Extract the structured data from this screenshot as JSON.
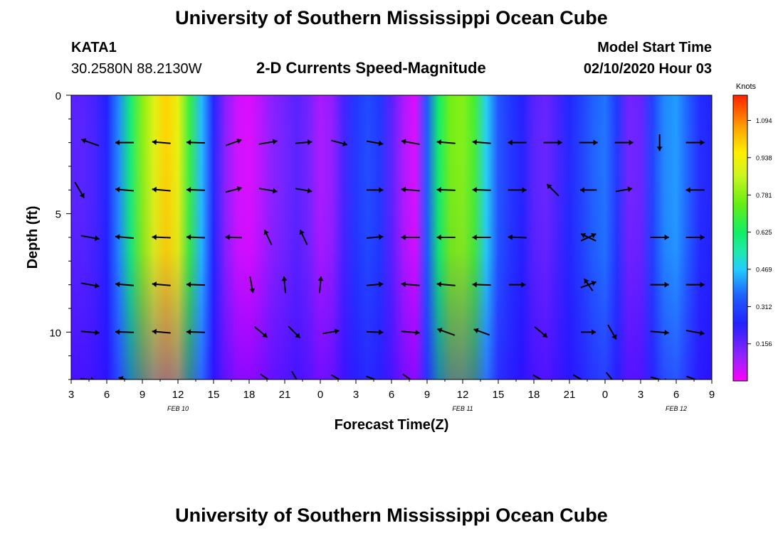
{
  "header": {
    "title": "University of Southern Mississippi Ocean Cube",
    "station": "KATA1",
    "coords": "30.2580N 88.2130W",
    "plot_title": "2-D Currents Speed-Magnitude",
    "model_label": "Model Start Time",
    "model_time": "02/10/2020 Hour 03"
  },
  "footer": {
    "title": "University of Southern Mississippi Ocean Cube"
  },
  "chart_data": {
    "type": "heatmap",
    "title": "2-D Currents Speed-Magnitude",
    "xlabel": "Forecast Time(Z)",
    "ylabel": "Depth (ft)",
    "x_tick_labels": [
      "3",
      "6",
      "9",
      "12",
      "15",
      "18",
      "21",
      "0",
      "3",
      "6",
      "9",
      "12",
      "15",
      "18",
      "21",
      "0",
      "3",
      "6",
      "9"
    ],
    "x_hours": [
      3,
      6,
      9,
      12,
      15,
      18,
      21,
      24,
      27,
      30,
      33,
      36,
      39,
      42,
      45,
      48,
      51,
      54,
      57
    ],
    "x_range_hours": [
      3,
      57
    ],
    "date_labels": [
      {
        "text": "FEB 10",
        "hour": 12
      },
      {
        "text": "FEB 11",
        "hour": 36
      },
      {
        "text": "FEB 12",
        "hour": 54
      }
    ],
    "y_ticks": [
      0,
      5,
      10
    ],
    "y_range_ft": [
      0,
      12
    ],
    "y_inverted": true,
    "colorbar": {
      "unit": "Knots",
      "range": [
        0,
        1.2
      ],
      "tick_values": [
        0.156,
        0.312,
        0.469,
        0.625,
        0.781,
        0.938,
        1.094
      ]
    },
    "speed_profile_knots": [
      [
        3,
        0.18
      ],
      [
        4,
        0.18
      ],
      [
        5,
        0.2
      ],
      [
        6,
        0.24
      ],
      [
        7,
        0.4
      ],
      [
        8,
        0.6
      ],
      [
        9,
        0.78
      ],
      [
        10,
        0.9
      ],
      [
        11,
        1.0
      ],
      [
        12,
        0.92
      ],
      [
        13,
        0.68
      ],
      [
        14,
        0.45
      ],
      [
        15,
        0.25
      ],
      [
        16,
        0.13
      ],
      [
        17,
        0.07
      ],
      [
        18,
        0.05
      ],
      [
        19,
        0.09
      ],
      [
        20,
        0.13
      ],
      [
        21,
        0.15
      ],
      [
        22,
        0.18
      ],
      [
        23,
        0.15
      ],
      [
        24,
        0.1
      ],
      [
        25,
        0.12
      ],
      [
        26,
        0.2
      ],
      [
        27,
        0.28
      ],
      [
        28,
        0.32
      ],
      [
        29,
        0.28
      ],
      [
        30,
        0.18
      ],
      [
        31,
        0.1
      ],
      [
        32,
        0.05
      ],
      [
        33,
        0.35
      ],
      [
        34,
        0.62
      ],
      [
        35,
        0.76
      ],
      [
        36,
        0.78
      ],
      [
        37,
        0.7
      ],
      [
        38,
        0.48
      ],
      [
        39,
        0.34
      ],
      [
        40,
        0.28
      ],
      [
        41,
        0.24
      ],
      [
        42,
        0.18
      ],
      [
        43,
        0.16
      ],
      [
        44,
        0.2
      ],
      [
        45,
        0.25
      ],
      [
        46,
        0.3
      ],
      [
        47,
        0.36
      ],
      [
        48,
        0.38
      ],
      [
        49,
        0.28
      ],
      [
        50,
        0.15
      ],
      [
        51,
        0.16
      ],
      [
        52,
        0.3
      ],
      [
        53,
        0.4
      ],
      [
        54,
        0.42
      ],
      [
        55,
        0.36
      ],
      [
        56,
        0.26
      ],
      [
        57,
        0.24
      ]
    ],
    "vectors": [
      {
        "hour": 4.6,
        "depth": 2,
        "angle": 160,
        "len": 1.0
      },
      {
        "hour": 7.5,
        "depth": 2,
        "angle": 180,
        "len": 1.0
      },
      {
        "hour": 10.6,
        "depth": 2,
        "angle": 175,
        "len": 1.0
      },
      {
        "hour": 13.5,
        "depth": 2,
        "angle": 178,
        "len": 1.0
      },
      {
        "hour": 16.7,
        "depth": 2,
        "angle": 20,
        "len": 0.9
      },
      {
        "hour": 19.6,
        "depth": 2,
        "angle": 10,
        "len": 1.0
      },
      {
        "hour": 22.6,
        "depth": 2,
        "angle": 5,
        "len": 0.9
      },
      {
        "hour": 25.6,
        "depth": 2,
        "angle": -15,
        "len": 0.9
      },
      {
        "hour": 28.6,
        "depth": 2,
        "angle": -10,
        "len": 0.9
      },
      {
        "hour": 31.6,
        "depth": 2,
        "angle": 170,
        "len": 1.0
      },
      {
        "hour": 34.6,
        "depth": 2,
        "angle": 175,
        "len": 1.0
      },
      {
        "hour": 37.6,
        "depth": 2,
        "angle": 175,
        "len": 1.0
      },
      {
        "hour": 40.6,
        "depth": 2,
        "angle": 180,
        "len": 1.0
      },
      {
        "hour": 43.6,
        "depth": 2,
        "angle": 0,
        "len": 1.0
      },
      {
        "hour": 46.6,
        "depth": 2,
        "angle": 0,
        "len": 1.0
      },
      {
        "hour": 49.6,
        "depth": 2,
        "angle": 0,
        "len": 1.0
      },
      {
        "hour": 52.6,
        "depth": 2,
        "angle": -90,
        "len": 0.9
      },
      {
        "hour": 55.6,
        "depth": 2,
        "angle": 0,
        "len": 1.0
      },
      {
        "hour": 3.7,
        "depth": 4,
        "angle": -60,
        "len": 1.0
      },
      {
        "hour": 7.5,
        "depth": 4,
        "angle": 175,
        "len": 1.0
      },
      {
        "hour": 10.6,
        "depth": 4,
        "angle": 175,
        "len": 1.0
      },
      {
        "hour": 13.5,
        "depth": 4,
        "angle": 178,
        "len": 1.0
      },
      {
        "hour": 16.7,
        "depth": 4,
        "angle": 15,
        "len": 0.9
      },
      {
        "hour": 19.6,
        "depth": 4,
        "angle": -10,
        "len": 1.0
      },
      {
        "hour": 22.6,
        "depth": 4,
        "angle": -10,
        "len": 0.9
      },
      {
        "hour": 28.6,
        "depth": 4,
        "angle": 0,
        "len": 0.9
      },
      {
        "hour": 31.6,
        "depth": 4,
        "angle": 175,
        "len": 1.0
      },
      {
        "hour": 34.6,
        "depth": 4,
        "angle": 178,
        "len": 1.0
      },
      {
        "hour": 37.6,
        "depth": 4,
        "angle": 178,
        "len": 1.0
      },
      {
        "hour": 40.6,
        "depth": 4,
        "angle": 0,
        "len": 1.0
      },
      {
        "hour": 43.6,
        "depth": 4,
        "angle": 135,
        "len": 0.9
      },
      {
        "hour": 46.6,
        "depth": 4,
        "angle": 180,
        "len": 0.9
      },
      {
        "hour": 49.6,
        "depth": 4,
        "angle": 10,
        "len": 0.9
      },
      {
        "hour": 55.6,
        "depth": 4,
        "angle": 180,
        "len": 1.0
      },
      {
        "hour": 4.6,
        "depth": 6,
        "angle": -10,
        "len": 1.0
      },
      {
        "hour": 7.5,
        "depth": 6,
        "angle": 175,
        "len": 1.0
      },
      {
        "hour": 10.6,
        "depth": 6,
        "angle": 178,
        "len": 1.0
      },
      {
        "hour": 13.5,
        "depth": 6,
        "angle": 178,
        "len": 1.0
      },
      {
        "hour": 16.7,
        "depth": 6,
        "angle": 178,
        "len": 0.9
      },
      {
        "hour": 19.6,
        "depth": 6,
        "angle": 115,
        "len": 0.9
      },
      {
        "hour": 22.6,
        "depth": 6,
        "angle": 115,
        "len": 0.9
      },
      {
        "hour": 28.6,
        "depth": 6,
        "angle": 5,
        "len": 0.9
      },
      {
        "hour": 31.6,
        "depth": 6,
        "angle": 180,
        "len": 1.0
      },
      {
        "hour": 34.6,
        "depth": 6,
        "angle": 180,
        "len": 1.0
      },
      {
        "hour": 37.6,
        "depth": 6,
        "angle": 180,
        "len": 1.0
      },
      {
        "hour": 40.6,
        "depth": 6,
        "angle": 178,
        "len": 1.0
      },
      {
        "hour": 46.6,
        "depth": 6,
        "angle": 25,
        "len": 0.9
      },
      {
        "hour": 46.6,
        "depth": 6,
        "angle": 155,
        "len": 0.9
      },
      {
        "hour": 52.6,
        "depth": 6,
        "angle": 0,
        "len": 1.0
      },
      {
        "hour": 55.6,
        "depth": 6,
        "angle": 0,
        "len": 1.0
      },
      {
        "hour": 4.6,
        "depth": 8,
        "angle": -10,
        "len": 1.0
      },
      {
        "hour": 7.5,
        "depth": 8,
        "angle": 175,
        "len": 1.0
      },
      {
        "hour": 10.6,
        "depth": 8,
        "angle": 175,
        "len": 1.0
      },
      {
        "hour": 13.5,
        "depth": 8,
        "angle": 178,
        "len": 1.0
      },
      {
        "hour": 18.2,
        "depth": 8,
        "angle": -80,
        "len": 0.9
      },
      {
        "hour": 21.0,
        "depth": 8,
        "angle": 95,
        "len": 0.9
      },
      {
        "hour": 24.0,
        "depth": 8,
        "angle": 85,
        "len": 0.9
      },
      {
        "hour": 28.6,
        "depth": 8,
        "angle": 5,
        "len": 0.9
      },
      {
        "hour": 31.6,
        "depth": 8,
        "angle": 175,
        "len": 1.0
      },
      {
        "hour": 34.6,
        "depth": 8,
        "angle": 175,
        "len": 1.0
      },
      {
        "hour": 37.6,
        "depth": 8,
        "angle": 178,
        "len": 1.0
      },
      {
        "hour": 40.6,
        "depth": 8,
        "angle": 0,
        "len": 0.9
      },
      {
        "hour": 46.6,
        "depth": 8,
        "angle": 20,
        "len": 0.9
      },
      {
        "hour": 46.6,
        "depth": 8,
        "angle": 125,
        "len": 0.8
      },
      {
        "hour": 52.6,
        "depth": 8,
        "angle": 0,
        "len": 1.0
      },
      {
        "hour": 55.6,
        "depth": 8,
        "angle": 0,
        "len": 1.0
      },
      {
        "hour": 4.6,
        "depth": 10,
        "angle": -5,
        "len": 1.0
      },
      {
        "hour": 7.5,
        "depth": 10,
        "angle": 178,
        "len": 1.0
      },
      {
        "hour": 10.6,
        "depth": 10,
        "angle": 175,
        "len": 1.0
      },
      {
        "hour": 13.5,
        "depth": 10,
        "angle": 178,
        "len": 1.0
      },
      {
        "hour": 19.0,
        "depth": 10,
        "angle": -40,
        "len": 0.9
      },
      {
        "hour": 21.8,
        "depth": 10,
        "angle": -45,
        "len": 0.9
      },
      {
        "hour": 24.9,
        "depth": 10,
        "angle": 10,
        "len": 0.9
      },
      {
        "hour": 28.6,
        "depth": 10,
        "angle": -2,
        "len": 0.9
      },
      {
        "hour": 31.6,
        "depth": 10,
        "angle": -5,
        "len": 1.0
      },
      {
        "hour": 34.6,
        "depth": 10,
        "angle": 160,
        "len": 1.0
      },
      {
        "hour": 37.6,
        "depth": 10,
        "angle": 160,
        "len": 0.9
      },
      {
        "hour": 42.6,
        "depth": 10,
        "angle": -40,
        "len": 0.9
      },
      {
        "hour": 46.6,
        "depth": 10,
        "angle": 0,
        "len": 0.8
      },
      {
        "hour": 48.6,
        "depth": 10,
        "angle": -60,
        "len": 0.9
      },
      {
        "hour": 52.6,
        "depth": 10,
        "angle": -5,
        "len": 1.0
      },
      {
        "hour": 55.6,
        "depth": 10,
        "angle": -10,
        "len": 1.0
      },
      {
        "hour": 4.4,
        "depth": 12,
        "angle": -5,
        "len": 0.8
      },
      {
        "hour": 7.6,
        "depth": 12,
        "angle": 165,
        "len": 0.8
      },
      {
        "hour": 19.6,
        "depth": 12,
        "angle": -35,
        "len": 1.0
      },
      {
        "hour": 22.0,
        "depth": 12,
        "angle": -60,
        "len": 1.0
      },
      {
        "hour": 25.6,
        "depth": 12,
        "angle": -30,
        "len": 1.0
      },
      {
        "hour": 28.6,
        "depth": 12,
        "angle": -20,
        "len": 1.0
      },
      {
        "hour": 31.6,
        "depth": 12,
        "angle": -35,
        "len": 1.0
      },
      {
        "hour": 42.6,
        "depth": 12,
        "angle": -30,
        "len": 1.0
      },
      {
        "hour": 46.0,
        "depth": 12,
        "angle": -30,
        "len": 1.0
      },
      {
        "hour": 48.6,
        "depth": 12,
        "angle": -50,
        "len": 1.0
      },
      {
        "hour": 52.6,
        "depth": 12,
        "angle": -15,
        "len": 1.0
      },
      {
        "hour": 55.6,
        "depth": 12,
        "angle": -20,
        "len": 1.0
      }
    ]
  }
}
